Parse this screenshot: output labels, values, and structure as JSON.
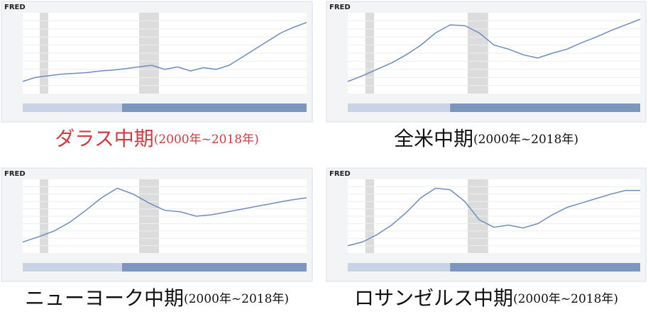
{
  "brand": "FRED",
  "chart_data": [
    {
      "type": "line",
      "title": "ダラス中期",
      "subtitle": "(2000年~2018年)",
      "title_color": "#d8383f",
      "color": "#6d8cc4",
      "ylim": [
        0,
        100
      ],
      "values": [
        15,
        20,
        22,
        24,
        25,
        26,
        28,
        29,
        31,
        33,
        35,
        30,
        33,
        28,
        32,
        30,
        35,
        45,
        55,
        65,
        75,
        82,
        88
      ]
    },
    {
      "type": "line",
      "title": "全米中期",
      "subtitle": "(2000年~2018年)",
      "title_color": "#111111",
      "color": "#6d8cc4",
      "ylim": [
        0,
        100
      ],
      "values": [
        15,
        22,
        30,
        38,
        48,
        60,
        75,
        85,
        84,
        75,
        60,
        55,
        48,
        44,
        50,
        55,
        63,
        70,
        78,
        85,
        92
      ]
    },
    {
      "type": "line",
      "title": "ニューヨーク中期",
      "subtitle": "(2000年~2018年)",
      "title_color": "#111111",
      "color": "#6d8cc4",
      "ylim": [
        0,
        100
      ],
      "values": [
        15,
        22,
        30,
        42,
        58,
        75,
        88,
        80,
        68,
        58,
        56,
        50,
        52,
        56,
        60,
        64,
        68,
        72,
        75
      ]
    },
    {
      "type": "line",
      "title": "ロサンゼルス中期",
      "subtitle": "(2000年~2018年)",
      "title_color": "#111111",
      "color": "#6d8cc4",
      "ylim": [
        0,
        100
      ],
      "values": [
        10,
        15,
        25,
        38,
        55,
        75,
        88,
        86,
        70,
        45,
        35,
        38,
        34,
        40,
        52,
        62,
        68,
        74,
        80,
        85,
        85
      ]
    }
  ]
}
